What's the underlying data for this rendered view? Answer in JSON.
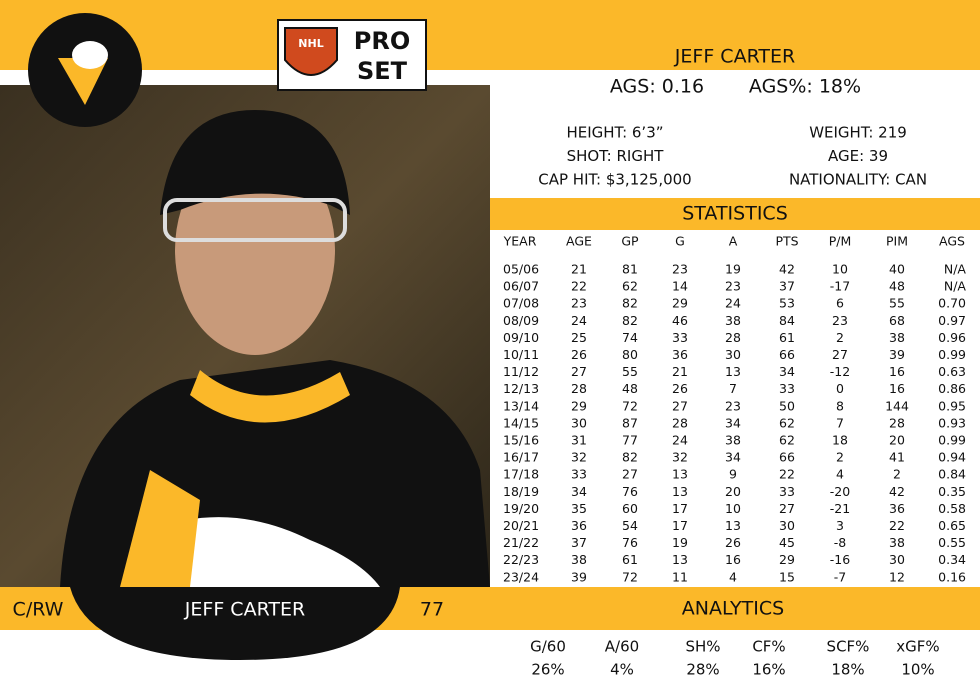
{
  "header": {
    "name": "JEFF CARTER",
    "ags": "AGS: 0.16",
    "ags_pct": "AGS%: 18%",
    "logo_top": "NHL",
    "logo_pro": "PRO",
    "logo_set": "SET"
  },
  "info": {
    "left": [
      "HEIGHT: 6’3”",
      "SHOT: RIGHT",
      "CAP HIT: $3,125,000"
    ],
    "right": [
      "WEIGHT: 219",
      "AGE: 39",
      "NATIONALITY: CAN"
    ]
  },
  "statistics": {
    "title": "STATISTICS",
    "columns": [
      "YEAR",
      "AGE",
      "GP",
      "G",
      "A",
      "PTS",
      "P/M",
      "PIM",
      "AGS"
    ],
    "rows": [
      [
        "05/06",
        "21",
        "81",
        "23",
        "19",
        "42",
        "10",
        "40",
        "N/A"
      ],
      [
        "06/07",
        "22",
        "62",
        "14",
        "23",
        "37",
        "-17",
        "48",
        "N/A"
      ],
      [
        "07/08",
        "23",
        "82",
        "29",
        "24",
        "53",
        "6",
        "55",
        "0.70"
      ],
      [
        "08/09",
        "24",
        "82",
        "46",
        "38",
        "84",
        "23",
        "68",
        "0.97"
      ],
      [
        "09/10",
        "25",
        "74",
        "33",
        "28",
        "61",
        "2",
        "38",
        "0.96"
      ],
      [
        "10/11",
        "26",
        "80",
        "36",
        "30",
        "66",
        "27",
        "39",
        "0.99"
      ],
      [
        "11/12",
        "27",
        "55",
        "21",
        "13",
        "34",
        "-12",
        "16",
        "0.63"
      ],
      [
        "12/13",
        "28",
        "48",
        "26",
        "7",
        "33",
        "0",
        "16",
        "0.86"
      ],
      [
        "13/14",
        "29",
        "72",
        "27",
        "23",
        "50",
        "8",
        "144",
        "0.95"
      ],
      [
        "14/15",
        "30",
        "87",
        "28",
        "34",
        "62",
        "7",
        "28",
        "0.93"
      ],
      [
        "15/16",
        "31",
        "77",
        "24",
        "38",
        "62",
        "18",
        "20",
        "0.99"
      ],
      [
        "16/17",
        "32",
        "82",
        "32",
        "34",
        "66",
        "2",
        "41",
        "0.94"
      ],
      [
        "17/18",
        "33",
        "27",
        "13",
        "9",
        "22",
        "4",
        "2",
        "0.84"
      ],
      [
        "18/19",
        "34",
        "76",
        "13",
        "20",
        "33",
        "-20",
        "42",
        "0.35"
      ],
      [
        "19/20",
        "35",
        "60",
        "17",
        "10",
        "27",
        "-21",
        "36",
        "0.58"
      ],
      [
        "20/21",
        "36",
        "54",
        "17",
        "13",
        "30",
        "3",
        "22",
        "0.65"
      ],
      [
        "21/22",
        "37",
        "76",
        "19",
        "26",
        "45",
        "-8",
        "38",
        "0.55"
      ],
      [
        "22/23",
        "38",
        "61",
        "13",
        "16",
        "29",
        "-16",
        "30",
        "0.34"
      ],
      [
        "23/24",
        "39",
        "72",
        "11",
        "4",
        "15",
        "-7",
        "12",
        "0.16"
      ]
    ]
  },
  "footer": {
    "position": "C/RW",
    "name": "JEFF CARTER",
    "number": "77"
  },
  "analytics": {
    "title": "ANALYTICS",
    "labels": [
      "G/60",
      "A/60",
      "SH%",
      "CF%",
      "SCF%",
      "xGF%"
    ],
    "values": [
      "26%",
      "4%",
      "28%",
      "16%",
      "18%",
      "10%"
    ]
  }
}
